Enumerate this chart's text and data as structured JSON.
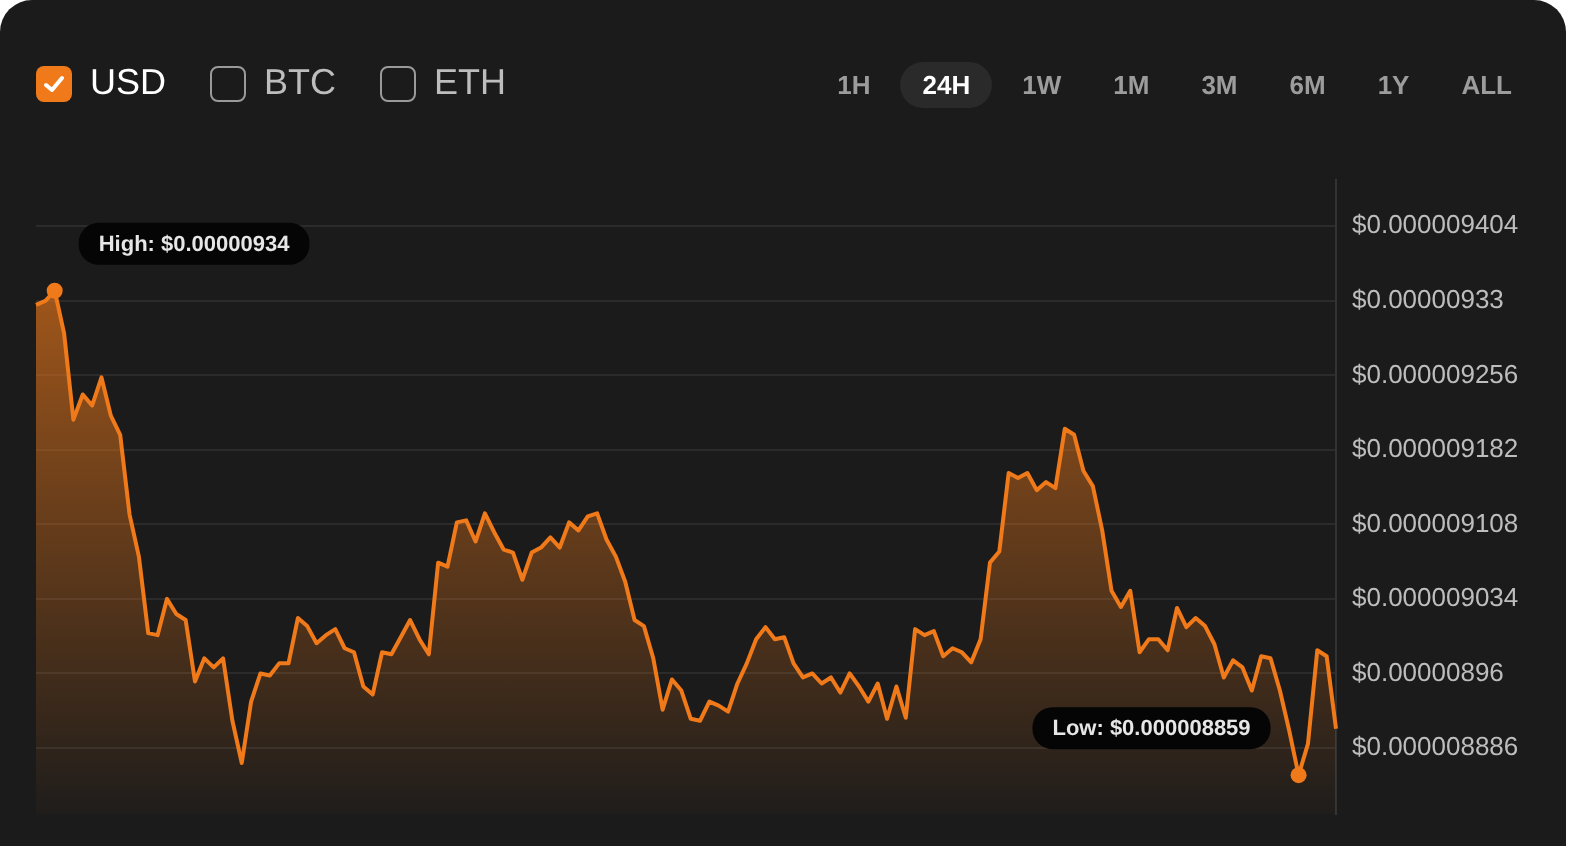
{
  "chart_data": {
    "type": "area",
    "categories": [
      null,
      null,
      null,
      null,
      null,
      null,
      null,
      null,
      null,
      null,
      null,
      null,
      null,
      null,
      null,
      null,
      null,
      null,
      null,
      null,
      null,
      null,
      null,
      null,
      null,
      null,
      null,
      null,
      null,
      null,
      null,
      null,
      null,
      null,
      null,
      null,
      null,
      null,
      null,
      null,
      null,
      null,
      null,
      null,
      null,
      null,
      null,
      null,
      null,
      null,
      null,
      null,
      null,
      null,
      null,
      null,
      null,
      null,
      null,
      null,
      null,
      null,
      null,
      null,
      null,
      null,
      null,
      null,
      null,
      null,
      null,
      null,
      null,
      null,
      null,
      null,
      null,
      null,
      null,
      null,
      null,
      null,
      null,
      null,
      null,
      null,
      null,
      null,
      null,
      null,
      null,
      null,
      null,
      null,
      null,
      null,
      null,
      null,
      null,
      null,
      null,
      null,
      null,
      null,
      null,
      null,
      null,
      null,
      null,
      null,
      null,
      null,
      null,
      null,
      null,
      null,
      null,
      null,
      null,
      null,
      null,
      null,
      null,
      null,
      null,
      null,
      null,
      null,
      null,
      null,
      null,
      null,
      null,
      null,
      null,
      null,
      null,
      null,
      null,
      null
    ],
    "series": [
      {
        "color": "#f07a1a",
        "values": [
          9.326e-06,
          9.33e-06,
          9.34e-06,
          9.298e-06,
          9.212e-06,
          9.237e-06,
          9.226e-06,
          9.254e-06,
          9.216e-06,
          9.197e-06,
          9.118e-06,
          9.076e-06,
          9e-06,
          8.998e-06,
          9.034e-06,
          9.019e-06,
          9.013e-06,
          8.952e-06,
          8.975e-06,
          8.966e-06,
          8.975e-06,
          8.913e-06,
          8.871e-06,
          8.932e-06,
          8.96e-06,
          8.958e-06,
          8.97e-06,
          8.97e-06,
          9.015e-06,
          9.007e-06,
          8.99e-06,
          8.998e-06,
          9.004e-06,
          8.985e-06,
          8.981e-06,
          8.947e-06,
          8.939e-06,
          8.981e-06,
          8.979e-06,
          8.996e-06,
          9.013e-06,
          8.994e-06,
          8.979e-06,
          9.07e-06,
          9.066e-06,
          9.11e-06,
          9.112e-06,
          9.091e-06,
          9.119e-06,
          9.1e-06,
          9.083e-06,
          9.08e-06,
          9.053e-06,
          9.08e-06,
          9.085e-06,
          9.095e-06,
          9.085e-06,
          9.11e-06,
          9.102e-06,
          9.116e-06,
          9.119e-06,
          9.093e-06,
          9.076e-06,
          9.051e-06,
          9.013e-06,
          9.007e-06,
          8.975e-06,
          8.924e-06,
          8.954e-06,
          8.943e-06,
          8.915e-06,
          8.913e-06,
          8.932e-06,
          8.928e-06,
          8.922e-06,
          8.95e-06,
          8.97e-06,
          8.994e-06,
          9.006e-06,
          8.994e-06,
          8.996e-06,
          8.97e-06,
          8.956e-06,
          8.96e-06,
          8.95e-06,
          8.956e-06,
          8.941e-06,
          8.96e-06,
          8.947e-06,
          8.932e-06,
          8.95e-06,
          8.915e-06,
          8.947e-06,
          8.916e-06,
          9.004e-06,
          8.998e-06,
          9.002e-06,
          8.977e-06,
          8.985e-06,
          8.981e-06,
          8.971e-06,
          8.994e-06,
          9.07e-06,
          9.081e-06,
          9.159e-06,
          9.154e-06,
          9.159e-06,
          9.142e-06,
          9.15e-06,
          9.144e-06,
          9.203e-06,
          9.197e-06,
          9.161e-06,
          9.146e-06,
          9.102e-06,
          9.042e-06,
          9.026e-06,
          9.042e-06,
          8.981e-06,
          8.994e-06,
          8.994e-06,
          8.983e-06,
          9.025e-06,
          9.006e-06,
          9.015e-06,
          9.007e-06,
          8.989e-06,
          8.956e-06,
          8.973e-06,
          8.966e-06,
          8.943e-06,
          8.977e-06,
          8.975e-06,
          8.943e-06,
          8.903e-06,
          8.859e-06,
          8.89e-06,
          8.983e-06,
          8.977e-06,
          8.905e-06
        ]
      }
    ],
    "ylim": [
      8.82e-06,
      9.45e-06
    ],
    "yticks": [
      {
        "value": 9.404e-06,
        "label": "$0.000009404"
      },
      {
        "value": 9.33e-06,
        "label": "$0.00000933"
      },
      {
        "value": 9.256e-06,
        "label": "$0.000009256"
      },
      {
        "value": 9.182e-06,
        "label": "$0.000009182"
      },
      {
        "value": 9.108e-06,
        "label": "$0.000009108"
      },
      {
        "value": 9.034e-06,
        "label": "$0.000009034"
      },
      {
        "value": 8.96e-06,
        "label": "$0.00000896"
      },
      {
        "value": 8.886e-06,
        "label": "$0.000008886"
      }
    ],
    "grid": "y",
    "legend": false,
    "marker": "none",
    "line_style": "solid",
    "annotations": [
      "USD",
      "BTC",
      "ETH",
      "1H",
      "24H",
      "1W",
      "1M",
      "3M",
      "6M",
      "1Y",
      "ALL",
      "High: $0.00000934",
      "Low: $0.000008859"
    ]
  }
}
